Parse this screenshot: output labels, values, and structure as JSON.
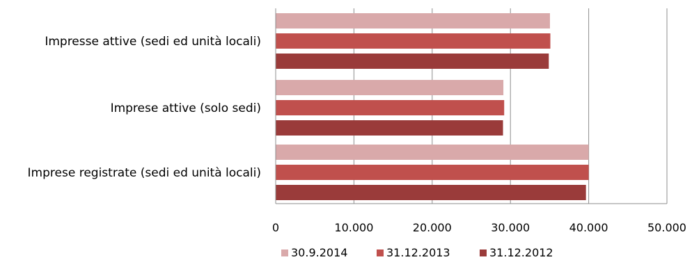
{
  "chart_data": {
    "type": "bar",
    "orientation": "horizontal",
    "title": "",
    "xlabel": "",
    "ylabel": "",
    "categories": [
      "Impresse attive (sedi ed unità locali)",
      "Imprese attive (solo sedi)",
      "Imprese registrate (sedi ed unità locali)"
    ],
    "series": [
      {
        "name": "30.9.2014",
        "color": "#d9a9aa",
        "values": [
          35050,
          29100,
          40000
        ]
      },
      {
        "name": "31.12.2013",
        "color": "#c0504d",
        "values": [
          35100,
          29200,
          40000
        ]
      },
      {
        "name": "31.12.2012",
        "color": "#9a3b3a",
        "values": [
          34900,
          29050,
          39650
        ]
      }
    ],
    "xlim": [
      0,
      50000
    ],
    "xticks": [
      0,
      10000,
      20000,
      30000,
      40000,
      50000
    ],
    "xtick_labels": [
      "0",
      "10.000",
      "20.000",
      "30.000",
      "40.000",
      "50.000"
    ],
    "grid": true,
    "legend_position": "bottom"
  }
}
